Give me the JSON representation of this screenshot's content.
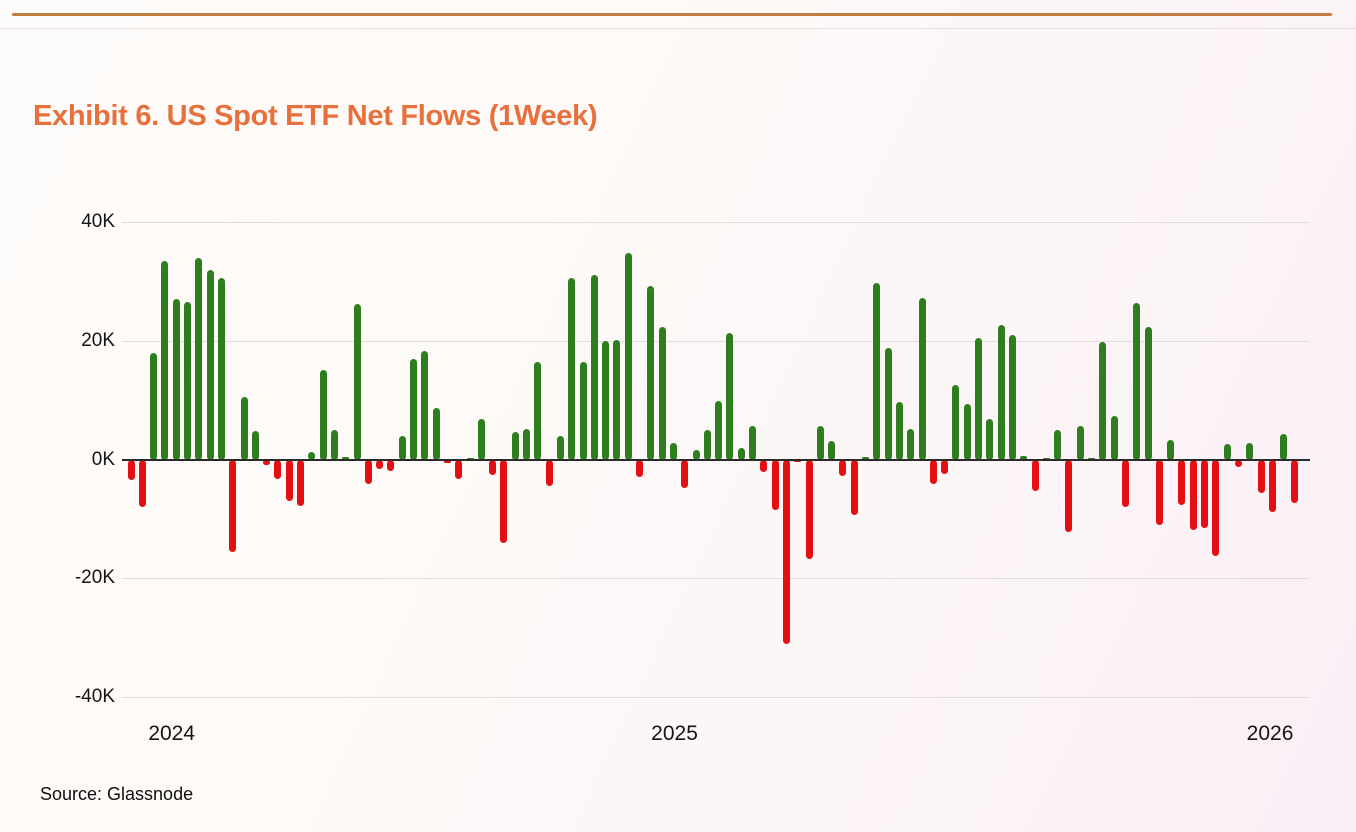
{
  "page": {
    "title": "Exhibit 6. US Spot ETF Net Flows (1Week)",
    "source_note": "Source: Glassnode"
  },
  "chart_data": {
    "type": "bar",
    "title": "Exhibit 6. US Spot ETF Net Flows (1Week)",
    "xlabel": "",
    "ylabel": "",
    "unit": "K",
    "ylim_k": [
      -40,
      40
    ],
    "grid": true,
    "legend": "none",
    "y_ticks": [
      {
        "label": "40K",
        "value_k": 40
      },
      {
        "label": "20K",
        "value_k": 20
      },
      {
        "label": "0K",
        "value_k": 0
      },
      {
        "label": "-20K",
        "value_k": -20
      },
      {
        "label": "-40K",
        "value_k": -40
      }
    ],
    "x_year_ticks": [
      {
        "label": "2024",
        "week_index": 3.6
      },
      {
        "label": "2025",
        "week_index": 48.1
      },
      {
        "label": "2026",
        "week_index": 100.8
      }
    ],
    "series_name": "US Spot ETF Net Flows (1Week)",
    "frequency": "weekly",
    "values_k": [
      -3.5,
      -8,
      18,
      33.5,
      27,
      26.5,
      34,
      32,
      30.5,
      -15.5,
      10.5,
      4.8,
      -1,
      -3.3,
      -7,
      -7.8,
      1.3,
      15,
      5,
      0.5,
      26.2,
      -4.2,
      -1.6,
      -1.9,
      4,
      17,
      18.2,
      8.6,
      -0.6,
      -3.2,
      0.3,
      6.9,
      -2.6,
      -14,
      4.7,
      5.1,
      16.4,
      -4.4,
      4,
      30.5,
      16.5,
      31,
      20,
      20.1,
      34.7,
      -3,
      29.3,
      22.3,
      2.7,
      -4.8,
      1.6,
      5,
      9.9,
      21.3,
      2,
      5.6,
      -2.1,
      -8.5,
      -31,
      -0.5,
      -16.8,
      5.6,
      3.2,
      -2.8,
      -9.3,
      0.4,
      29.8,
      18.7,
      9.7,
      5.2,
      27.2,
      -4.1,
      -2.4,
      12.5,
      9.4,
      20.5,
      6.8,
      22.6,
      20.9,
      0.6,
      -5.3,
      0.3,
      5,
      -12.2,
      5.7,
      0.3,
      19.8,
      7.3,
      -8,
      26.3,
      22.4,
      -11,
      3.3,
      -7.7,
      -11.9,
      -11.6,
      -16.2,
      2.6,
      -1.3,
      2.8,
      -5.6,
      -8.8,
      4.3,
      -7.4
    ],
    "colors": {
      "positive_bar": "#2e7e20",
      "negative_bar": "#e40f13",
      "grid_line": "#e2dddd",
      "zero_line": "#2a2a2a",
      "title": "#e7703c",
      "top_rule": "#c07c42",
      "text": "#151515"
    },
    "source": "Glassnode"
  }
}
